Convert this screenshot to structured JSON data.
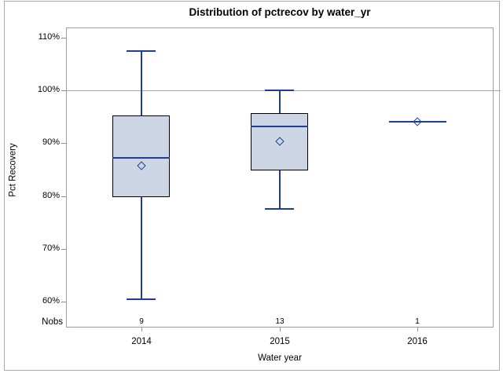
{
  "title": "Distribution of pctrecov by water_yr",
  "y_axis": {
    "label": "Pct Recovery",
    "tick_labels": [
      "110%",
      "100%",
      "90%",
      "80%",
      "70%",
      "60%"
    ],
    "tick_values": [
      110,
      100,
      90,
      80,
      70,
      60
    ]
  },
  "x_axis": {
    "label": "Water year",
    "categories": [
      "2014",
      "2015",
      "2016"
    ]
  },
  "nobs_row": {
    "label": "Nobs",
    "values": [
      "9",
      "13",
      "1"
    ]
  },
  "chart_data": {
    "type": "boxplot",
    "title": "Distribution of pctrecov by water_yr",
    "xlabel": "Water year",
    "ylabel": "Pct Recovery",
    "categories": [
      "2014",
      "2015",
      "2016"
    ],
    "ylim": [
      55.1,
      111.9
    ],
    "yticks": [
      60,
      70,
      80,
      90,
      100,
      110
    ],
    "ytick_format": "percent",
    "reference_line": 100,
    "grid": false,
    "series": [
      {
        "category": "2014",
        "nobs": 9,
        "whisker_low": 60.5,
        "q1": 79.7,
        "median": 87.2,
        "mean": 85.7,
        "q3": 95.2,
        "whisker_high": 107.5
      },
      {
        "category": "2015",
        "nobs": 13,
        "whisker_low": 77.6,
        "q1": 84.8,
        "median": 93.2,
        "mean": 90.4,
        "q3": 95.7,
        "whisker_high": 100.0
      },
      {
        "category": "2016",
        "nobs": 1,
        "whisker_low": null,
        "q1": 94.0,
        "median": 94.0,
        "mean": 94.0,
        "q3": 94.0,
        "whisker_high": null
      }
    ]
  },
  "colors": {
    "line_blue": "#1d3d99",
    "box_fill": "#ccd5e4",
    "box_border": "#000000",
    "axis_gray": "#9b9ba1",
    "ref_gray": "#a7a7ad",
    "text": "#000000"
  }
}
